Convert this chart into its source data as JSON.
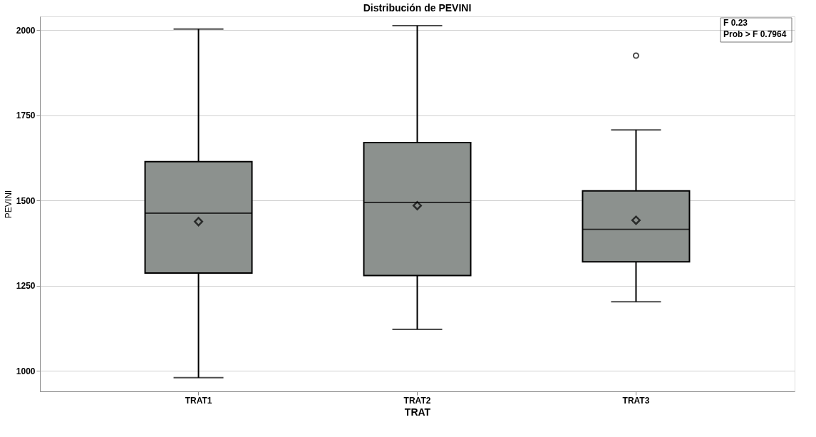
{
  "chart_data": {
    "type": "box",
    "title": "Distribución de PEVINI",
    "xlabel": "TRAT",
    "ylabel": "PEVINI",
    "categories": [
      "TRAT1",
      "TRAT2",
      "TRAT3"
    ],
    "boxes": [
      {
        "low": 980,
        "q1": 1287,
        "median": 1463,
        "q3": 1614,
        "high": 2003,
        "mean": 1438
      },
      {
        "low": 1122,
        "q1": 1280,
        "median": 1494,
        "q3": 1670,
        "high": 2013,
        "mean": 1485
      },
      {
        "low": 1203,
        "q1": 1320,
        "median": 1415,
        "q3": 1528,
        "high": 1707,
        "mean": 1442,
        "outliers": [
          1925
        ]
      }
    ],
    "color": "#8c918e",
    "ylim": [
      940,
      2040
    ],
    "yticks": [
      1000,
      1250,
      1500,
      1750,
      2000
    ],
    "grid": "y",
    "annotations": [
      "F 0.23",
      "Prob > F 0.7964"
    ]
  }
}
